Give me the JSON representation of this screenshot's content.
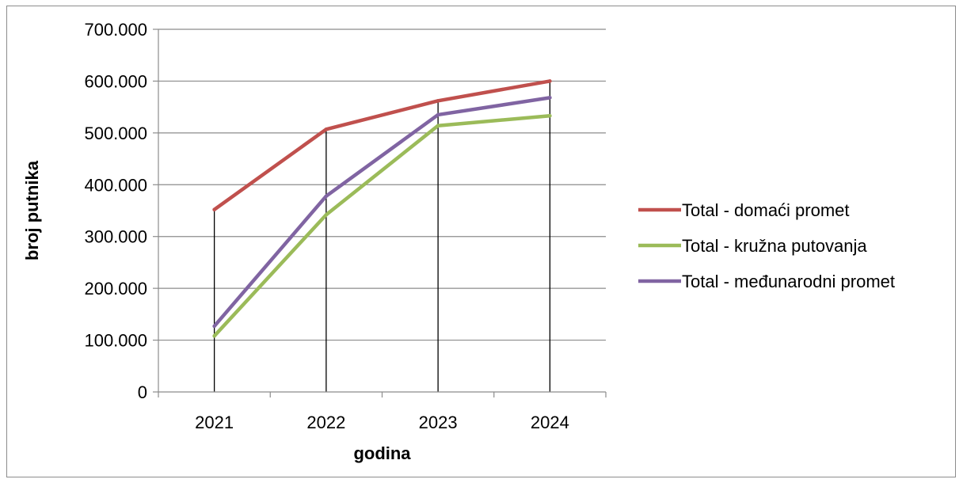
{
  "chart_data": {
    "type": "line",
    "title": "",
    "xlabel": "godina",
    "ylabel": "broj putnika",
    "categories": [
      "2021",
      "2022",
      "2023",
      "2024"
    ],
    "ylim": [
      0,
      700000
    ],
    "yticks": [
      0,
      100000,
      200000,
      300000,
      400000,
      500000,
      600000,
      700000
    ],
    "ytick_labels": [
      "0",
      "100.000",
      "200.000",
      "300.000",
      "400.000",
      "500.000",
      "600.000",
      "700.000"
    ],
    "grid": "horizontal",
    "drop_lines": true,
    "legend_position": "right",
    "series": [
      {
        "name": "Total - domaći promet",
        "color": "#c0504d",
        "values": [
          352000,
          507000,
          562000,
          600000
        ]
      },
      {
        "name": "Total - kružna putovanja",
        "color": "#9bbb59",
        "values": [
          108000,
          342000,
          514000,
          533000
        ]
      },
      {
        "name": "Total - međunarodni promet",
        "color": "#8064a2",
        "values": [
          127000,
          378000,
          535000,
          568000
        ]
      }
    ]
  }
}
